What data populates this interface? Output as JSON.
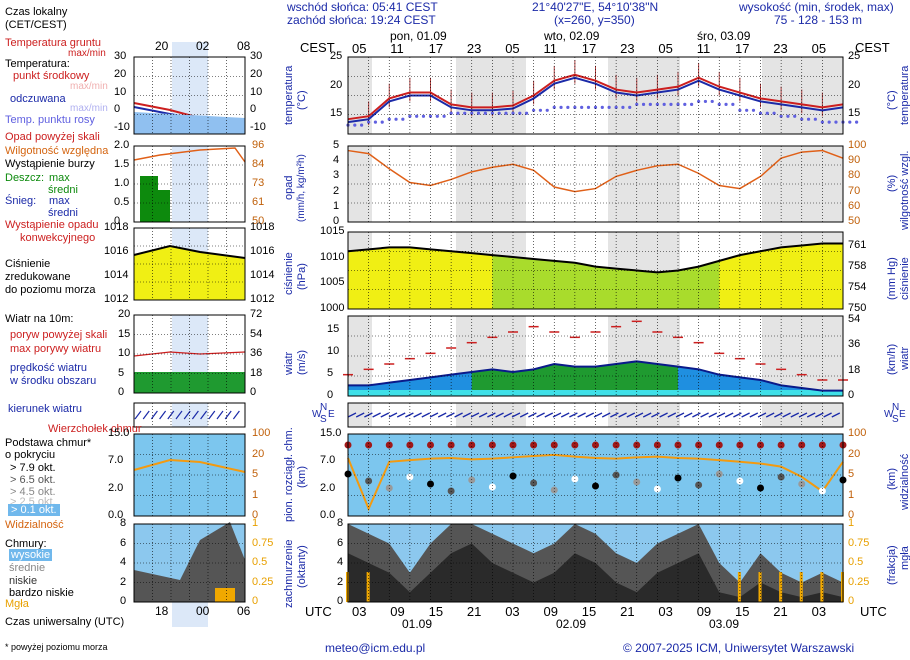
{
  "header": {
    "sunrise": "wschód słońca: 05:41 CEST",
    "sunset": "zachód słońca: 19:24 CEST",
    "coords": "21°40'27\"E, 54°10'38\"N",
    "grid": "(x=260,  y=350)",
    "height_label": "wysokość (min, środek, max)",
    "height_values": "75 - 128 - 153 m"
  },
  "time": {
    "cest": "CEST",
    "utc": "UTC",
    "days": [
      "pon, 01.09",
      "wto, 02.09",
      "śro, 03.09"
    ],
    "top_hours": [
      "05",
      "11",
      "17",
      "23",
      "05",
      "11",
      "17",
      "23",
      "05",
      "11",
      "17",
      "23",
      "05"
    ],
    "bottom_hours": [
      "03",
      "09",
      "15",
      "21",
      "03",
      "09",
      "15",
      "21",
      "03",
      "09",
      "15",
      "21",
      "03"
    ],
    "bottom_dates": [
      "01.09",
      "02.09",
      "03.09"
    ]
  },
  "legend": {
    "local_time": "Czas lokalny",
    "local_time_sub": "(CET/CEST)",
    "local_hours": [
      "20",
      "02",
      "08"
    ],
    "utc_hours": [
      "18",
      "00",
      "06"
    ],
    "utc_label": "Czas uniwersalny (UTC)",
    "footnote": "* powyżej poziomu morza",
    "soil_temp": "Temperatura gruntu",
    "maxmin": "max/min",
    "temperature": "Temperatura:",
    "mid_point": "punkt środkowy",
    "maxmin2": "max/min",
    "felt": "odczuwana",
    "maxmin3": "max/min",
    "dew": "Temp. punktu rosy",
    "precip_above": "Opad powyżej skali",
    "humidity": "Wilgotność względna",
    "storm": "Wystąpienie burzy",
    "rain": "Deszcz:",
    "rain_max": "max",
    "rain_mid": "średni",
    "snow": "Śnieg:",
    "snow_max": "max",
    "snow_mid": "średni",
    "conv": "Wystąpienie opadu",
    "conv2": "konwekcyjnego",
    "pressure": "Ciśnienie",
    "pressure2": "zredukowane",
    "pressure3": "do poziomu morza",
    "wind_at": "Wiatr na 10m:",
    "gust_above": "poryw powyżej skali",
    "gust_max": "max porywy wiatru",
    "wind_speed": "prędkość wiatru",
    "wind_speed2": "w środku obszaru",
    "wind_dir": "kierunek wiatru",
    "cumulus_top": "Wierzchołek chmur",
    "cloud_base": "Podstawa chmur*",
    "cloud_base2": "o pokryciu",
    "okt": [
      "> 7.9 okt.",
      "> 6.5 okt.",
      "> 4.5 okt.",
      "> 2.5 okt.",
      "> 0.1 okt."
    ],
    "visibility": "Widzialność",
    "clouds": "Chmury:",
    "high": "wysokie",
    "medium": "średnie",
    "low": "niskie",
    "very_low": "bardzo niskie",
    "fog": "Mgła"
  },
  "axes": {
    "temp_left": "temperatura",
    "temp_left2": "(°C)",
    "temp_right": "temperatura",
    "temp_right2": "(°C)",
    "precip_left": "opad",
    "precip_left2": "(mm/h, kg/m²h)",
    "hum_right": "wilgotność wzgl.",
    "hum_right2": "(%)",
    "press_left": "ciśnienie",
    "press_left2": "(hPa)",
    "press_right": "ciśnienie",
    "press_right2": "(mm Hg)",
    "wind_left": "wiatr",
    "wind_left2": "(m/s)",
    "wind_right": "wiatr",
    "wind_right2": "(km/h)",
    "cloud_left": "pion. rozciągł. chm.",
    "cloud_left2": "(km)",
    "vis_right": "widzialność",
    "vis_right2": "(km)",
    "cover_left": "zachmurzenie",
    "cover_left2": "(oktanty)",
    "fog_right": "mgła",
    "fog_right2": "(frakcja)",
    "compass": [
      "N",
      "W",
      "E",
      "S"
    ]
  },
  "ticks": {
    "temp": [
      "25",
      "20",
      "15"
    ],
    "temp_legend": [
      "30",
      "20",
      "10",
      "0",
      "-10"
    ],
    "precip": [
      "5",
      "4",
      "3",
      "2",
      "1",
      "0"
    ],
    "precip_legend": [
      "2.0",
      "1.5",
      "1.0",
      "0.5",
      "0"
    ],
    "hum": [
      "100",
      "90",
      "80",
      "70",
      "60",
      "50"
    ],
    "hum_legend": [
      "96",
      "84",
      "73",
      "61",
      "50"
    ],
    "press": [
      "1015",
      "1010",
      "1005",
      "1000"
    ],
    "press_legend": [
      "1018",
      "1016",
      "1014",
      "1012"
    ],
    "press_mm": [
      "761",
      "758",
      "754",
      "750"
    ],
    "wind": [
      "15",
      "10",
      "5",
      "0"
    ],
    "wind_legend": [
      "20",
      "15",
      "10",
      "5",
      "0"
    ],
    "wind_kmh": [
      "54",
      "36",
      "18",
      "0"
    ],
    "wind_kmh_legend": [
      "72",
      "54",
      "36",
      "18",
      "0"
    ],
    "cloud": [
      "15.0",
      "7.0",
      "2.0",
      "0.0"
    ],
    "cloud_legend": [
      "15.0",
      "7.0",
      "2.0",
      "0.0"
    ],
    "vis": [
      "100",
      "20",
      "5",
      "1",
      "0"
    ],
    "cover": [
      "8",
      "6",
      "4",
      "2",
      "0"
    ],
    "fog": [
      "1",
      "0.75",
      "0.5",
      "0.25",
      "0"
    ]
  },
  "footer": {
    "email": "meteo@icm.edu.pl",
    "copyright": "© 2007-2025 ICM, Uniwersytet Warszawski"
  },
  "colors": {
    "red": "#cc1f1f",
    "blue": "#1b2aa8",
    "orange": "#e07820",
    "yellow": "#f2f200",
    "green": "#88d418"
  },
  "chart_data": [
    {
      "type": "line",
      "title": "temperatura (°C)",
      "ylim": [
        12,
        25
      ],
      "x_hours_cest": [
        5,
        8,
        11,
        14,
        17,
        20,
        23,
        26,
        29,
        32,
        35,
        38,
        41,
        44,
        47,
        50,
        53,
        56,
        59,
        62,
        65,
        68,
        71,
        74,
        77
      ],
      "series": [
        {
          "name": "punkt środkowy",
          "values": [
            14.5,
            15,
            18,
            19,
            19,
            17,
            16.5,
            16.5,
            16.8,
            18.5,
            21,
            22,
            21,
            19.5,
            19,
            19.5,
            20,
            21.5,
            20,
            19,
            18,
            17.5,
            17,
            16.5,
            17
          ]
        },
        {
          "name": "odczuwana",
          "values": [
            14,
            14.5,
            17.5,
            18.5,
            18.5,
            16.5,
            16,
            16,
            16.3,
            18,
            20.5,
            21.5,
            20.5,
            19,
            18.5,
            19,
            19.5,
            21,
            19.5,
            18.5,
            17.5,
            17,
            16.5,
            16,
            16.5
          ]
        },
        {
          "name": "Temp. punktu rosy",
          "values": [
            13.5,
            14,
            14.5,
            15,
            15,
            15.5,
            15.5,
            15.5,
            15.5,
            16,
            16.5,
            16.5,
            16.5,
            16.5,
            17,
            17,
            17,
            17.5,
            17,
            16,
            15.5,
            15,
            14.5,
            14,
            14
          ]
        }
      ]
    },
    {
      "type": "line",
      "title": "wilgotność wzgl. (%)",
      "ylim": [
        50,
        100
      ],
      "values": [
        97,
        95,
        85,
        76,
        74,
        78,
        83,
        86,
        88,
        84,
        73,
        70,
        72,
        80,
        84,
        87,
        88,
        82,
        74,
        72,
        80,
        92,
        96,
        97,
        92
      ]
    },
    {
      "type": "area",
      "title": "ciśnienie (hPa)",
      "ylim": [
        1000,
        1020
      ],
      "values": [
        1015,
        1015.5,
        1016,
        1016,
        1015.5,
        1015,
        1014.5,
        1014,
        1013.5,
        1013,
        1012.5,
        1012,
        1011,
        1010.5,
        1010,
        1009.5,
        1010,
        1011,
        1012.5,
        1014,
        1015,
        1016,
        1016.5,
        1017,
        1017
      ]
    },
    {
      "type": "area",
      "title": "wiatr (m/s)",
      "ylim": [
        0,
        15
      ],
      "series": [
        {
          "name": "prędkość wiatru",
          "values": [
            2,
            2,
            2.5,
            3,
            3.5,
            4,
            4.5,
            5,
            4.5,
            5,
            6,
            5.5,
            5.5,
            6,
            6.5,
            6,
            5.5,
            5,
            4,
            3.5,
            3,
            2,
            1.5,
            1,
            1
          ]
        },
        {
          "name": "max porywy wiatru",
          "values": [
            4,
            5,
            6,
            7,
            8,
            9,
            10,
            11,
            12,
            13,
            12,
            11,
            12,
            13,
            14,
            12,
            11,
            10,
            8,
            7,
            6,
            5,
            4,
            3,
            3
          ]
        }
      ]
    },
    {
      "type": "line",
      "title": "widzialność (km)",
      "ylim": [
        0,
        100
      ],
      "values": [
        25,
        0.5,
        20,
        22,
        24,
        25,
        23,
        24,
        26,
        28,
        30,
        27,
        25,
        24,
        26,
        27,
        25,
        24,
        22,
        20,
        18,
        15,
        8,
        3,
        20
      ]
    }
  ]
}
